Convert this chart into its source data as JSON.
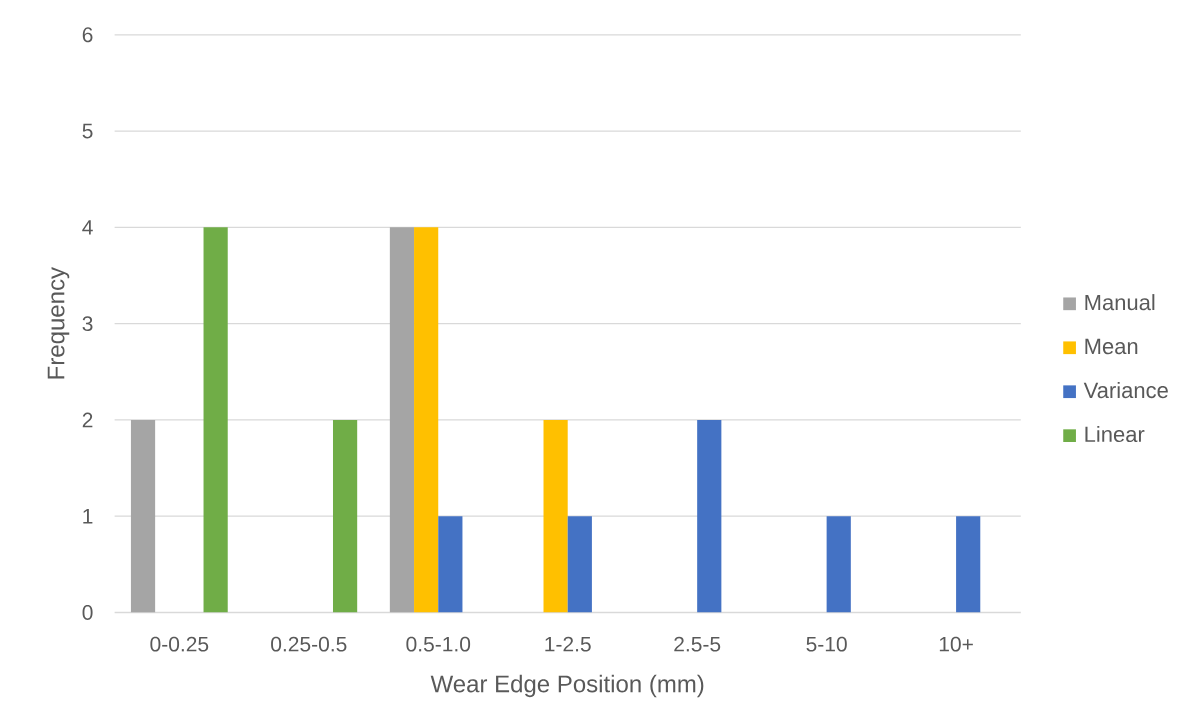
{
  "chart_data": {
    "type": "bar",
    "xlabel": "Wear Edge Position (mm)",
    "ylabel": "Frequency",
    "categories": [
      "0-0.25",
      "0.25-0.5",
      "0.5-1.0",
      "1-2.5",
      "2.5-5",
      "5-10",
      "10+"
    ],
    "series": [
      {
        "name": "Manual",
        "color": "#a5a5a5",
        "values": [
          2,
          null,
          4,
          null,
          null,
          null,
          null
        ]
      },
      {
        "name": "Mean",
        "color": "#ffc000",
        "values": [
          null,
          null,
          4,
          2,
          null,
          null,
          null
        ]
      },
      {
        "name": "Variance",
        "color": "#4472c4",
        "values": [
          null,
          null,
          1,
          1,
          2,
          1,
          1
        ]
      },
      {
        "name": "Linear",
        "color": "#70ad47",
        "values": [
          4,
          2,
          null,
          null,
          null,
          null,
          null
        ]
      }
    ],
    "ylim": [
      0,
      6
    ],
    "yticks": [
      0,
      1,
      2,
      3,
      4,
      5,
      6
    ],
    "grid": "y",
    "legend": "right"
  }
}
